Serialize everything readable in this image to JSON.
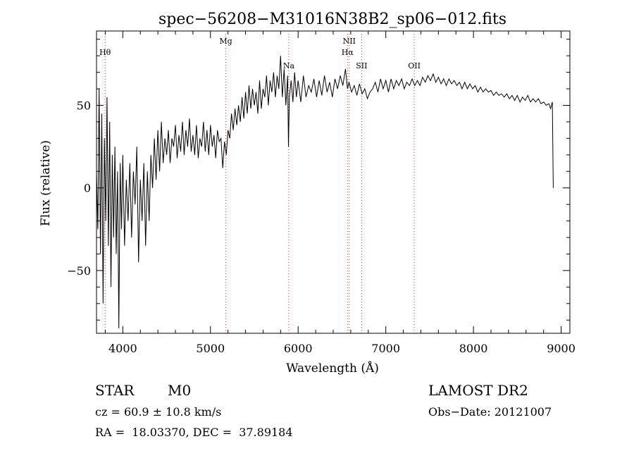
{
  "chart_data": {
    "type": "line",
    "title": "spec−56208−M31016N38B2_sp06−012.fits",
    "xlabel": "Wavelength (Å)",
    "ylabel": "Flux (relative)",
    "xlim": [
      3700,
      9100
    ],
    "ylim": [
      -88,
      95
    ],
    "xticks": [
      4000,
      5000,
      6000,
      7000,
      8000,
      9000
    ],
    "xtick_labels": [
      "4000",
      "5000",
      "6000",
      "7000",
      "8000",
      "9000"
    ],
    "yticks": [
      -50,
      0,
      50
    ],
    "ytick_labels": [
      "−50",
      "0",
      "50"
    ],
    "grid": false,
    "line_color": "#000000",
    "marker_color": "#d62728",
    "spectral_lines": [
      {
        "label": "Hθ",
        "x": 3798
      },
      {
        "label": "Mg",
        "x": 5175
      },
      {
        "label": "Na",
        "x": 5893
      },
      {
        "label": "NII",
        "x": 6583
      },
      {
        "label": "Hα",
        "x": 6563
      },
      {
        "label": "SII",
        "x": 6724
      },
      {
        "label": "OII",
        "x": 7325
      }
    ],
    "series": [
      {
        "points": [
          [
            3700,
            10
          ],
          [
            3715,
            -25
          ],
          [
            3730,
            60
          ],
          [
            3745,
            -40
          ],
          [
            3760,
            45
          ],
          [
            3775,
            -70
          ],
          [
            3790,
            30
          ],
          [
            3805,
            -20
          ],
          [
            3820,
            55
          ],
          [
            3835,
            -35
          ],
          [
            3850,
            40
          ],
          [
            3865,
            -60
          ],
          [
            3880,
            20
          ],
          [
            3895,
            -30
          ],
          [
            3910,
            25
          ],
          [
            3925,
            -40
          ],
          [
            3940,
            10
          ],
          [
            3955,
            -85
          ],
          [
            3970,
            15
          ],
          [
            3985,
            -25
          ],
          [
            4000,
            20
          ],
          [
            4020,
            -35
          ],
          [
            4040,
            5
          ],
          [
            4060,
            -20
          ],
          [
            4080,
            15
          ],
          [
            4100,
            -30
          ],
          [
            4120,
            10
          ],
          [
            4140,
            -10
          ],
          [
            4160,
            25
          ],
          [
            4180,
            -45
          ],
          [
            4200,
            5
          ],
          [
            4220,
            -20
          ],
          [
            4240,
            15
          ],
          [
            4260,
            -35
          ],
          [
            4280,
            10
          ],
          [
            4300,
            -20
          ],
          [
            4320,
            20
          ],
          [
            4340,
            0
          ],
          [
            4360,
            30
          ],
          [
            4380,
            5
          ],
          [
            4400,
            35
          ],
          [
            4420,
            10
          ],
          [
            4440,
            40
          ],
          [
            4460,
            15
          ],
          [
            4480,
            30
          ],
          [
            4500,
            20
          ],
          [
            4520,
            35
          ],
          [
            4540,
            15
          ],
          [
            4560,
            30
          ],
          [
            4580,
            25
          ],
          [
            4600,
            38
          ],
          [
            4620,
            18
          ],
          [
            4640,
            32
          ],
          [
            4660,
            22
          ],
          [
            4680,
            40
          ],
          [
            4700,
            20
          ],
          [
            4720,
            35
          ],
          [
            4740,
            25
          ],
          [
            4760,
            42
          ],
          [
            4780,
            22
          ],
          [
            4800,
            32
          ],
          [
            4820,
            20
          ],
          [
            4840,
            38
          ],
          [
            4860,
            18
          ],
          [
            4880,
            30
          ],
          [
            4900,
            25
          ],
          [
            4920,
            40
          ],
          [
            4940,
            22
          ],
          [
            4960,
            35
          ],
          [
            4980,
            20
          ],
          [
            5000,
            38
          ],
          [
            5020,
            25
          ],
          [
            5040,
            32
          ],
          [
            5060,
            18
          ],
          [
            5080,
            35
          ],
          [
            5100,
            28
          ],
          [
            5120,
            30
          ],
          [
            5140,
            12
          ],
          [
            5160,
            28
          ],
          [
            5180,
            20
          ],
          [
            5200,
            35
          ],
          [
            5220,
            30
          ],
          [
            5240,
            45
          ],
          [
            5260,
            35
          ],
          [
            5280,
            48
          ],
          [
            5300,
            38
          ],
          [
            5320,
            50
          ],
          [
            5340,
            40
          ],
          [
            5360,
            55
          ],
          [
            5380,
            42
          ],
          [
            5400,
            58
          ],
          [
            5420,
            45
          ],
          [
            5440,
            62
          ],
          [
            5460,
            48
          ],
          [
            5480,
            60
          ],
          [
            5500,
            50
          ],
          [
            5520,
            58
          ],
          [
            5540,
            45
          ],
          [
            5560,
            65
          ],
          [
            5580,
            48
          ],
          [
            5600,
            60
          ],
          [
            5620,
            55
          ],
          [
            5640,
            68
          ],
          [
            5660,
            50
          ],
          [
            5680,
            65
          ],
          [
            5700,
            58
          ],
          [
            5720,
            70
          ],
          [
            5740,
            55
          ],
          [
            5760,
            68
          ],
          [
            5780,
            60
          ],
          [
            5800,
            80
          ],
          [
            5820,
            55
          ],
          [
            5840,
            72
          ],
          [
            5860,
            50
          ],
          [
            5880,
            68
          ],
          [
            5890,
            25
          ],
          [
            5900,
            55
          ],
          [
            5920,
            65
          ],
          [
            5940,
            52
          ],
          [
            5960,
            70
          ],
          [
            5980,
            55
          ],
          [
            6000,
            65
          ],
          [
            6030,
            52
          ],
          [
            6060,
            68
          ],
          [
            6090,
            55
          ],
          [
            6120,
            62
          ],
          [
            6150,
            58
          ],
          [
            6180,
            66
          ],
          [
            6210,
            55
          ],
          [
            6240,
            65
          ],
          [
            6270,
            56
          ],
          [
            6300,
            68
          ],
          [
            6330,
            58
          ],
          [
            6360,
            64
          ],
          [
            6390,
            55
          ],
          [
            6420,
            66
          ],
          [
            6450,
            60
          ],
          [
            6480,
            68
          ],
          [
            6510,
            62
          ],
          [
            6540,
            72
          ],
          [
            6563,
            60
          ],
          [
            6580,
            64
          ],
          [
            6610,
            58
          ],
          [
            6640,
            62
          ],
          [
            6670,
            56
          ],
          [
            6700,
            63
          ],
          [
            6730,
            57
          ],
          [
            6760,
            60
          ],
          [
            6790,
            54
          ],
          [
            6820,
            58
          ],
          [
            6850,
            60
          ],
          [
            6880,
            64
          ],
          [
            6910,
            58
          ],
          [
            6940,
            66
          ],
          [
            6970,
            60
          ],
          [
            7000,
            65
          ],
          [
            7030,
            58
          ],
          [
            7060,
            66
          ],
          [
            7090,
            60
          ],
          [
            7120,
            65
          ],
          [
            7150,
            62
          ],
          [
            7180,
            66
          ],
          [
            7210,
            60
          ],
          [
            7240,
            64
          ],
          [
            7270,
            62
          ],
          [
            7300,
            66
          ],
          [
            7330,
            62
          ],
          [
            7360,
            65
          ],
          [
            7390,
            62
          ],
          [
            7420,
            67
          ],
          [
            7450,
            64
          ],
          [
            7480,
            68
          ],
          [
            7510,
            65
          ],
          [
            7540,
            69
          ],
          [
            7570,
            64
          ],
          [
            7600,
            67
          ],
          [
            7630,
            63
          ],
          [
            7660,
            66
          ],
          [
            7690,
            62
          ],
          [
            7720,
            66
          ],
          [
            7750,
            63
          ],
          [
            7780,
            65
          ],
          [
            7810,
            62
          ],
          [
            7840,
            64
          ],
          [
            7870,
            60
          ],
          [
            7900,
            64
          ],
          [
            7930,
            60
          ],
          [
            7960,
            63
          ],
          [
            7990,
            60
          ],
          [
            8020,
            62
          ],
          [
            8050,
            58
          ],
          [
            8080,
            61
          ],
          [
            8110,
            58
          ],
          [
            8140,
            60
          ],
          [
            8170,
            58
          ],
          [
            8200,
            59
          ],
          [
            8230,
            56
          ],
          [
            8260,
            58
          ],
          [
            8290,
            56
          ],
          [
            8320,
            57
          ],
          [
            8350,
            55
          ],
          [
            8380,
            57
          ],
          [
            8410,
            54
          ],
          [
            8440,
            56
          ],
          [
            8470,
            53
          ],
          [
            8500,
            56
          ],
          [
            8530,
            52
          ],
          [
            8560,
            55
          ],
          [
            8590,
            53
          ],
          [
            8620,
            56
          ],
          [
            8650,
            52
          ],
          [
            8680,
            54
          ],
          [
            8710,
            52
          ],
          [
            8740,
            54
          ],
          [
            8770,
            51
          ],
          [
            8800,
            52
          ],
          [
            8830,
            50
          ],
          [
            8860,
            51
          ],
          [
            8880,
            48
          ],
          [
            8900,
            52
          ],
          [
            8910,
            0
          ]
        ]
      }
    ]
  },
  "info": {
    "object_type": "STAR",
    "subclass": "M0",
    "survey": "LAMOST DR2",
    "redshift": "cz = 60.9 ± 10.8 km/s",
    "obs_date": "Obs−Date: 20121007",
    "coordinates": "RA =  18.03370, DEC =  37.89184"
  }
}
